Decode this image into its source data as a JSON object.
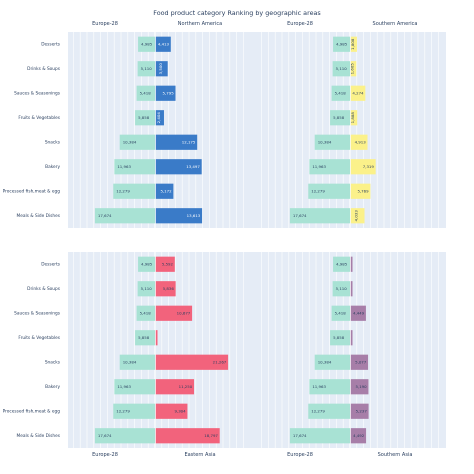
{
  "title": "Food product category Ranking by geographic areas",
  "categories": [
    "Desserts",
    "Drinks & Soups",
    "Sauces & Seasonings",
    "Fruits & Vegetables",
    "Snacks",
    "Bakery",
    "Processed fish,meat & egg",
    "Meals & Side Dishes"
  ],
  "colors": {
    "europe": "#a8e2d4",
    "north_america": "#3a7bc8",
    "southern_america": "#fbf18a",
    "eastern_asia": "#f2637c",
    "southern_asia": "#a77ea8",
    "plot_bg": "#e5ecf6"
  },
  "chart_data": [
    {
      "type": "bar",
      "orientation": "horizontal",
      "diverging": true,
      "categories": [
        "Desserts",
        "Drinks & Soups",
        "Sauces & Seasonings",
        "Fruits & Vegetables",
        "Snacks",
        "Bakery",
        "Processed fish,meat & egg",
        "Meals & Side Dishes"
      ],
      "series": [
        {
          "name": "Europe-28",
          "values": [
            4985,
            5110,
            5418,
            5858,
            10384,
            11963,
            12279,
            17674
          ]
        },
        {
          "name": "Northern America",
          "values": [
            4413,
            3500,
            5795,
            2404,
            12175,
            13497,
            5172,
            13613
          ]
        }
      ]
    },
    {
      "type": "bar",
      "orientation": "horizontal",
      "diverging": true,
      "categories": [
        "Desserts",
        "Drinks & Soups",
        "Sauces & Seasonings",
        "Fruits & Vegetables",
        "Snacks",
        "Bakery",
        "Processed fish,meat & egg",
        "Meals & Side Dishes"
      ],
      "series": [
        {
          "name": "Europe-28",
          "values": [
            4985,
            5110,
            5418,
            5858,
            10384,
            11963,
            12279,
            17674
          ]
        },
        {
          "name": "Southern America",
          "values": [
            1808,
            1605,
            4274,
            1888,
            4913,
            7319,
            5769,
            4033
          ]
        }
      ]
    },
    {
      "type": "bar",
      "orientation": "horizontal",
      "diverging": true,
      "categories": [
        "Desserts",
        "Drinks & Soups",
        "Sauces & Seasonings",
        "Fruits & Vegetables",
        "Snacks",
        "Bakery",
        "Processed fish,meat & egg",
        "Meals & Side Dishes"
      ],
      "series": [
        {
          "name": "Europe-28",
          "values": [
            4985,
            5110,
            5418,
            5858,
            10384,
            11963,
            12279,
            17674
          ]
        },
        {
          "name": "Eastern Asia",
          "values": [
            5592,
            5836,
            10677,
            500,
            21267,
            11250,
            9304,
            18797
          ]
        }
      ]
    },
    {
      "type": "bar",
      "orientation": "horizontal",
      "diverging": true,
      "categories": [
        "Desserts",
        "Drinks & Soups",
        "Sauces & Seasonings",
        "Fruits & Vegetables",
        "Snacks",
        "Bakery",
        "Processed fish,meat & egg",
        "Meals & Side Dishes"
      ],
      "series": [
        {
          "name": "Europe-28",
          "values": [
            4985,
            5110,
            5418,
            5858,
            10384,
            11963,
            12279,
            17674
          ]
        },
        {
          "name": "Southern Asia",
          "values": [
            500,
            500,
            4449,
            500,
            5077,
            5190,
            5237,
            4492
          ]
        }
      ]
    }
  ]
}
